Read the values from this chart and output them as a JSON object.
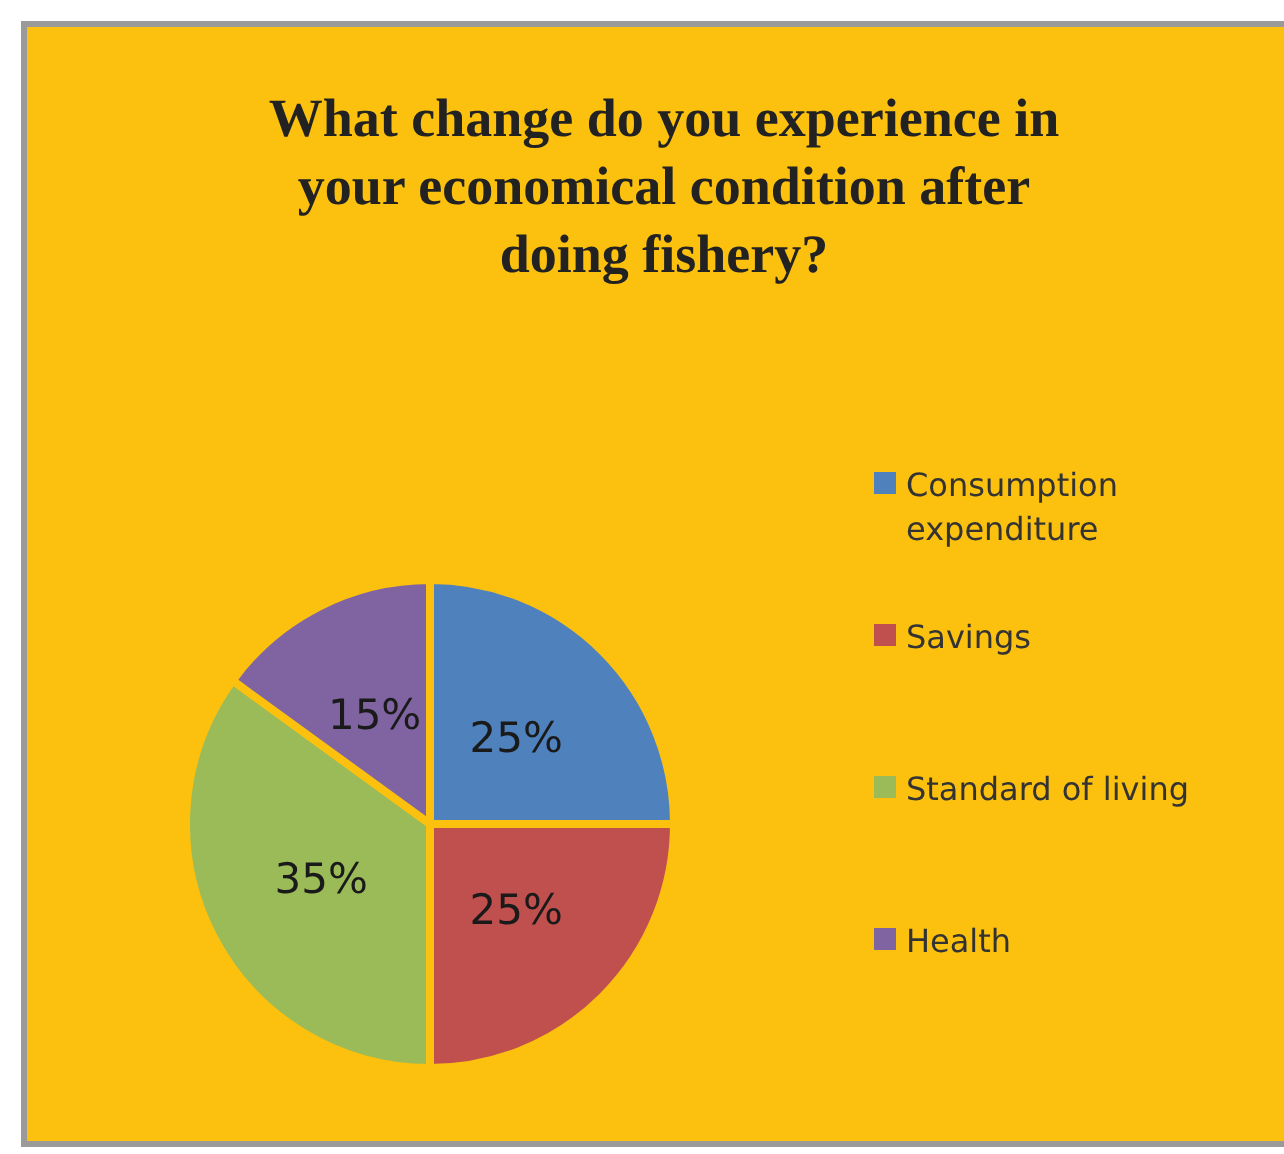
{
  "chart_data": {
    "type": "pie",
    "title": "What change do you experience in your economical condition after doing fishery?",
    "categories": [
      "Consumption expenditure",
      "Savings",
      "Standard of living",
      "Health"
    ],
    "values": [
      25,
      25,
      35,
      15
    ],
    "colors": [
      "#4f81bd",
      "#c0504d",
      "#9bbb59",
      "#8064a2"
    ],
    "value_labels": [
      "25%",
      "25%",
      "35%",
      "15%"
    ],
    "legend": "right"
  }
}
